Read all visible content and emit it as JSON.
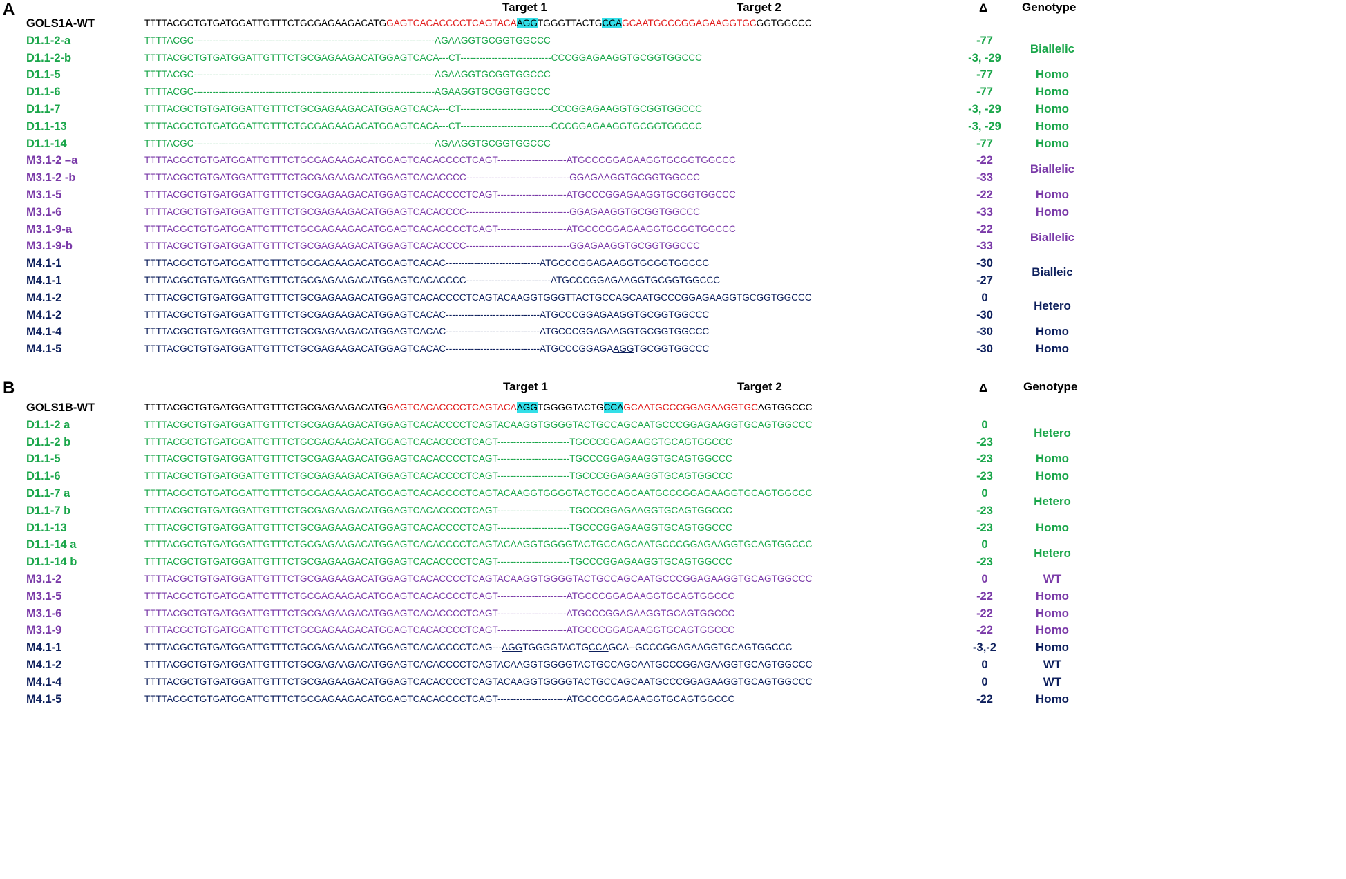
{
  "colors": {
    "wt": "#000000",
    "green": "#1aa64a",
    "purple": "#7a3aa8",
    "navy": "#0d1f5c",
    "target": "#e11d1d",
    "pam": "#33dfe8"
  },
  "panels": [
    {
      "letter": "A",
      "target1": "Target 1",
      "target2": "Target 2",
      "delta_head": "Δ",
      "genotype_head": "Genotype",
      "rows": [
        {
          "name": "GOLS1A-WT",
          "color": "wt",
          "delta": "",
          "seq": [
            {
              "t": "TTTTACGCTGTGATGGATTGTTTCTGCGAGAAGACATG"
            },
            {
              "t": "GAGTCACACCCCTCAGTACA",
              "s": "red"
            },
            {
              "t": "AGG",
              "s": "pam"
            },
            {
              "t": "TGGGTTACTG"
            },
            {
              "t": "CCA",
              "s": "pam"
            },
            {
              "t": "GCAATGCCCGGAGAAGGTGC",
              "s": "red"
            },
            {
              "t": "GGTGGCCC"
            }
          ]
        },
        {
          "name": "D1.1-2-a",
          "color": "green",
          "delta": "-77",
          "seq": [
            {
              "t": "TTTTACGC-----------------------------------------------------------------------------AGAAGGTGCGGTGGCCC"
            }
          ]
        },
        {
          "name": "D1.1-2-b",
          "color": "green",
          "delta": "-3, -29",
          "seq": [
            {
              "t": "TTTTACGCTGTGATGGATTGTTTCTGCGAGAAGACATGGAGTCACA---CT-----------------------------CCCGGAGAAGGTGCGGTGGCCC"
            }
          ]
        },
        {
          "name": "D1.1-5",
          "color": "green",
          "delta": "-77",
          "seq": [
            {
              "t": "TTTTACGC-----------------------------------------------------------------------------AGAAGGTGCGGTGGCCC"
            }
          ]
        },
        {
          "name": "D1.1-6",
          "color": "green",
          "delta": "-77",
          "seq": [
            {
              "t": "TTTTACGC-----------------------------------------------------------------------------AGAAGGTGCGGTGGCCC"
            }
          ]
        },
        {
          "name": "D1.1-7",
          "color": "green",
          "delta": "-3, -29",
          "seq": [
            {
              "t": "TTTTACGCTGTGATGGATTGTTTCTGCGAGAAGACATGGAGTCACA---CT-----------------------------CCCGGAGAAGGTGCGGTGGCCC"
            }
          ]
        },
        {
          "name": "D1.1-13",
          "color": "green",
          "delta": "-3, -29",
          "seq": [
            {
              "t": "TTTTACGCTGTGATGGATTGTTTCTGCGAGAAGACATGGAGTCACA---CT-----------------------------CCCGGAGAAGGTGCGGTGGCCC"
            }
          ]
        },
        {
          "name": "D1.1-14",
          "color": "green",
          "delta": "-77",
          "seq": [
            {
              "t": "TTTTACGC-----------------------------------------------------------------------------AGAAGGTGCGGTGGCCC"
            }
          ]
        },
        {
          "name": "M3.1-2 –a",
          "color": "purple",
          "delta": "-22",
          "seq": [
            {
              "t": "TTTTACGCTGTGATGGATTGTTTCTGCGAGAAGACATGGAGTCACACCCCTCAGT----------------------ATGCCCGGAGAAGGTGCGGTGGCCC"
            }
          ]
        },
        {
          "name": "M3.1-2 -b",
          "color": "purple",
          "delta": "-33",
          "seq": [
            {
              "t": "TTTTACGCTGTGATGGATTGTTTCTGCGAGAAGACATGGAGTCACACCCC---------------------------------GGAGAAGGTGCGGTGGCCC"
            }
          ]
        },
        {
          "name": "M3.1-5",
          "color": "purple",
          "delta": "-22",
          "seq": [
            {
              "t": "TTTTACGCTGTGATGGATTGTTTCTGCGAGAAGACATGGAGTCACACCCCTCAGT----------------------ATGCCCGGAGAAGGTGCGGTGGCCC"
            }
          ]
        },
        {
          "name": "M3.1-6",
          "color": "purple",
          "delta": "-33",
          "seq": [
            {
              "t": "TTTTACGCTGTGATGGATTGTTTCTGCGAGAAGACATGGAGTCACACCCC---------------------------------GGAGAAGGTGCGGTGGCCC"
            }
          ]
        },
        {
          "name": "M3.1-9-a",
          "color": "purple",
          "delta": "-22",
          "seq": [
            {
              "t": "TTTTACGCTGTGATGGATTGTTTCTGCGAGAAGACATGGAGTCACACCCCTCAGT----------------------ATGCCCGGAGAAGGTGCGGTGGCCC"
            }
          ]
        },
        {
          "name": "M3.1-9-b",
          "color": "purple",
          "delta": "-33",
          "seq": [
            {
              "t": "TTTTACGCTGTGATGGATTGTTTCTGCGAGAAGACATGGAGTCACACCCC---------------------------------GGAGAAGGTGCGGTGGCCC"
            }
          ]
        },
        {
          "name": "M4.1-1",
          "color": "navy",
          "delta": "-30",
          "seq": [
            {
              "t": "TTTTACGCTGTGATGGATTGTTTCTGCGAGAAGACATGGAGTCACAC------------------------------ATGCCCGGAGAAGGTGCGGTGGCCC"
            }
          ]
        },
        {
          "name": "M4.1-1",
          "color": "navy",
          "delta": "-27",
          "seq": [
            {
              "t": "TTTTACGCTGTGATGGATTGTTTCTGCGAGAAGACATGGAGTCACACCCC---------------------------ATGCCCGGAGAAGGTGCGGTGGCCC"
            }
          ]
        },
        {
          "name": "M4.1-2",
          "color": "navy",
          "delta": "0",
          "seq": [
            {
              "t": "TTTTACGCTGTGATGGATTGTTTCTGCGAGAAGACATGGAGTCACACCCCTCAGTACAAGGTGGGTTACTGCCAGCAATGCCCGGAGAAGGTGCGGTGGCCC"
            }
          ]
        },
        {
          "name": "M4.1-2",
          "color": "navy",
          "delta": "-30",
          "seq": [
            {
              "t": "TTTTACGCTGTGATGGATTGTTTCTGCGAGAAGACATGGAGTCACAC------------------------------ATGCCCGGAGAAGGTGCGGTGGCCC"
            }
          ]
        },
        {
          "name": "M4.1-4",
          "color": "navy",
          "delta": "-30",
          "seq": [
            {
              "t": "TTTTACGCTGTGATGGATTGTTTCTGCGAGAAGACATGGAGTCACAC------------------------------ATGCCCGGAGAAGGTGCGGTGGCCC"
            }
          ]
        },
        {
          "name": "M4.1-5",
          "color": "navy",
          "delta": "-30",
          "seq": [
            {
              "t": "TTTTACGCTGTGATGGATTGTTTCTGCGAGAAGACATGGAGTCACAC------------------------------ATGCCCGGAGA"
            },
            {
              "t": "AGG",
              "s": "ul"
            },
            {
              "t": "TGCGGTGGCCC"
            }
          ]
        }
      ],
      "genotypes": [
        {
          "label": "Biallelic",
          "color": "green",
          "rows": [
            1,
            2
          ]
        },
        {
          "label": "Homo",
          "color": "green",
          "rows": [
            3
          ]
        },
        {
          "label": "Homo",
          "color": "green",
          "rows": [
            4
          ]
        },
        {
          "label": "Homo",
          "color": "green",
          "rows": [
            5
          ]
        },
        {
          "label": "Homo",
          "color": "green",
          "rows": [
            6
          ]
        },
        {
          "label": "Homo",
          "color": "green",
          "rows": [
            7
          ]
        },
        {
          "label": "Biallelic",
          "color": "purple",
          "rows": [
            8,
            9
          ]
        },
        {
          "label": "Homo",
          "color": "purple",
          "rows": [
            10
          ]
        },
        {
          "label": "Homo",
          "color": "purple",
          "rows": [
            11
          ]
        },
        {
          "label": "Biallelic",
          "color": "purple",
          "rows": [
            12,
            13
          ]
        },
        {
          "label": "Bialleic",
          "color": "navy",
          "rows": [
            14,
            15
          ]
        },
        {
          "label": "Hetero",
          "color": "navy",
          "rows": [
            16,
            17
          ]
        },
        {
          "label": "Homo",
          "color": "navy",
          "rows": [
            18
          ]
        },
        {
          "label": "Homo",
          "color": "navy",
          "rows": [
            19
          ]
        }
      ]
    },
    {
      "letter": "B",
      "target1": "Target 1",
      "target2": "Target 2",
      "delta_head": "Δ",
      "genotype_head": "Genotype",
      "rows": [
        {
          "name": "GOLS1B-WT",
          "color": "wt",
          "delta": "",
          "seq": [
            {
              "t": "TTTTACGCTGTGATGGATTGTTTCTGCGAGAAGACATG"
            },
            {
              "t": "GAGTCACACCCCTCAGTACA",
              "s": "red"
            },
            {
              "t": "AGG",
              "s": "pam"
            },
            {
              "t": "TGGGGTACTG"
            },
            {
              "t": "CCA",
              "s": "pam"
            },
            {
              "t": "GCAATGCCCGGAGAAGGTGC",
              "s": "red"
            },
            {
              "t": "AGTGGCCC"
            }
          ]
        },
        {
          "name": "D1.1-2 a",
          "color": "green",
          "delta": "0",
          "seq": [
            {
              "t": "TTTTACGCTGTGATGGATTGTTTCTGCGAGAAGACATGGAGTCACACCCCTCAGTACAAGGTGGGGTACTGCCAGCAATGCCCGGAGAAGGTGCAGTGGCCC"
            }
          ]
        },
        {
          "name": "D1.1-2 b",
          "color": "green",
          "delta": "-23",
          "seq": [
            {
              "t": "TTTTACGCTGTGATGGATTGTTTCTGCGAGAAGACATGGAGTCACACCCCTCAGT-----------------------TGCCCGGAGAAGGTGCAGTGGCCC"
            }
          ]
        },
        {
          "name": "D1.1-5",
          "color": "green",
          "delta": "-23",
          "seq": [
            {
              "t": "TTTTACGCTGTGATGGATTGTTTCTGCGAGAAGACATGGAGTCACACCCCTCAGT-----------------------TGCCCGGAGAAGGTGCAGTGGCCC"
            }
          ]
        },
        {
          "name": "D1.1-6",
          "color": "green",
          "delta": "-23",
          "seq": [
            {
              "t": "TTTTACGCTGTGATGGATTGTTTCTGCGAGAAGACATGGAGTCACACCCCTCAGT-----------------------TGCCCGGAGAAGGTGCAGTGGCCC"
            }
          ]
        },
        {
          "name": "D1.1-7 a",
          "color": "green",
          "delta": "0",
          "seq": [
            {
              "t": "TTTTACGCTGTGATGGATTGTTTCTGCGAGAAGACATGGAGTCACACCCCTCAGTACAAGGTGGGGTACTGCCAGCAATGCCCGGAGAAGGTGCAGTGGCCC"
            }
          ]
        },
        {
          "name": "D1.1-7 b",
          "color": "green",
          "delta": "-23",
          "seq": [
            {
              "t": "TTTTACGCTGTGATGGATTGTTTCTGCGAGAAGACATGGAGTCACACCCCTCAGT-----------------------TGCCCGGAGAAGGTGCAGTGGCCC"
            }
          ]
        },
        {
          "name": "D1.1-13",
          "color": "green",
          "delta": "-23",
          "seq": [
            {
              "t": "TTTTACGCTGTGATGGATTGTTTCTGCGAGAAGACATGGAGTCACACCCCTCAGT-----------------------TGCCCGGAGAAGGTGCAGTGGCCC"
            }
          ]
        },
        {
          "name": "D1.1-14 a",
          "color": "green",
          "delta": "0",
          "seq": [
            {
              "t": "TTTTACGCTGTGATGGATTGTTTCTGCGAGAAGACATGGAGTCACACCCCTCAGTACAAGGTGGGGTACTGCCAGCAATGCCCGGAGAAGGTGCAGTGGCCC"
            }
          ]
        },
        {
          "name": "D1.1-14 b",
          "color": "green",
          "delta": "-23",
          "seq": [
            {
              "t": "TTTTACGCTGTGATGGATTGTTTCTGCGAGAAGACATGGAGTCACACCCCTCAGT-----------------------TGCCCGGAGAAGGTGCAGTGGCCC"
            }
          ]
        },
        {
          "name": "M3.1-2",
          "color": "purple",
          "delta": "0",
          "seq": [
            {
              "t": "TTTTACGCTGTGATGGATTGTTTCTGCGAGAAGACATGGAGTCACACCCCTCAGTACA"
            },
            {
              "t": "AGG",
              "s": "ul"
            },
            {
              "t": "TGGGGTACTG"
            },
            {
              "t": "CCA",
              "s": "ul"
            },
            {
              "t": "GCAATGCCCGGAGAAGGTGCAGTGGCCC"
            }
          ]
        },
        {
          "name": "M3.1-5",
          "color": "purple",
          "delta": "-22",
          "seq": [
            {
              "t": "TTTTACGCTGTGATGGATTGTTTCTGCGAGAAGACATGGAGTCACACCCCTCAGT----------------------ATGCCCGGAGAAGGTGCAGTGGCCC"
            }
          ]
        },
        {
          "name": "M3.1-6",
          "color": "purple",
          "delta": "-22",
          "seq": [
            {
              "t": "TTTTACGCTGTGATGGATTGTTTCTGCGAGAAGACATGGAGTCACACCCCTCAGT----------------------ATGCCCGGAGAAGGTGCAGTGGCCC"
            }
          ]
        },
        {
          "name": "M3.1-9",
          "color": "purple",
          "delta": "-22",
          "seq": [
            {
              "t": "TTTTACGCTGTGATGGATTGTTTCTGCGAGAAGACATGGAGTCACACCCCTCAGT----------------------ATGCCCGGAGAAGGTGCAGTGGCCC"
            }
          ]
        },
        {
          "name": "M4.1-1",
          "color": "navy",
          "delta": "-3,-2",
          "seq": [
            {
              "t": "TTTTACGCTGTGATGGATTGTTTCTGCGAGAAGACATGGAGTCACACCCCTCAG---"
            },
            {
              "t": "AGG",
              "s": "ul"
            },
            {
              "t": "TGGGGTACTG"
            },
            {
              "t": "CCA",
              "s": "ul"
            },
            {
              "t": "GCA--GCCCGGAGAAGGTGCAGTGGCCC"
            }
          ]
        },
        {
          "name": "M4.1-2",
          "color": "navy",
          "delta": "0",
          "seq": [
            {
              "t": "TTTTACGCTGTGATGGATTGTTTCTGCGAGAAGACATGGAGTCACACCCCTCAGTACAAGGTGGGGTACTGCCAGCAATGCCCGGAGAAGGTGCAGTGGCCC"
            }
          ]
        },
        {
          "name": "M4.1-4",
          "color": "navy",
          "delta": "0",
          "seq": [
            {
              "t": "TTTTACGCTGTGATGGATTGTTTCTGCGAGAAGACATGGAGTCACACCCCTCAGTACAAGGTGGGGTACTGCCAGCAATGCCCGGAGAAGGTGCAGTGGCCC"
            }
          ]
        },
        {
          "name": "M4.1-5",
          "color": "navy",
          "delta": "-22",
          "seq": [
            {
              "t": "TTTTACGCTGTGATGGATTGTTTCTGCGAGAAGACATGGAGTCACACCCCTCAGT----------------------ATGCCCGGAGAAGGTGCAGTGGCCC"
            }
          ]
        }
      ],
      "genotypes": [
        {
          "label": "Hetero",
          "color": "green",
          "rows": [
            1,
            2
          ]
        },
        {
          "label": "Homo",
          "color": "green",
          "rows": [
            3
          ]
        },
        {
          "label": "Homo",
          "color": "green",
          "rows": [
            4
          ]
        },
        {
          "label": "Hetero",
          "color": "green",
          "rows": [
            5,
            6
          ]
        },
        {
          "label": "Homo",
          "color": "green",
          "rows": [
            7
          ]
        },
        {
          "label": "Hetero",
          "color": "green",
          "rows": [
            8,
            9
          ]
        },
        {
          "label": "WT",
          "color": "purple",
          "rows": [
            10
          ]
        },
        {
          "label": "Homo",
          "color": "purple",
          "rows": [
            11
          ]
        },
        {
          "label": "Homo",
          "color": "purple",
          "rows": [
            12
          ]
        },
        {
          "label": "Homo",
          "color": "purple",
          "rows": [
            13
          ]
        },
        {
          "label": "Homo",
          "color": "navy",
          "rows": [
            14
          ]
        },
        {
          "label": "WT",
          "color": "navy",
          "rows": [
            15
          ]
        },
        {
          "label": "WT",
          "color": "navy",
          "rows": [
            16
          ]
        },
        {
          "label": "Homo",
          "color": "navy",
          "rows": [
            17
          ]
        }
      ]
    }
  ]
}
